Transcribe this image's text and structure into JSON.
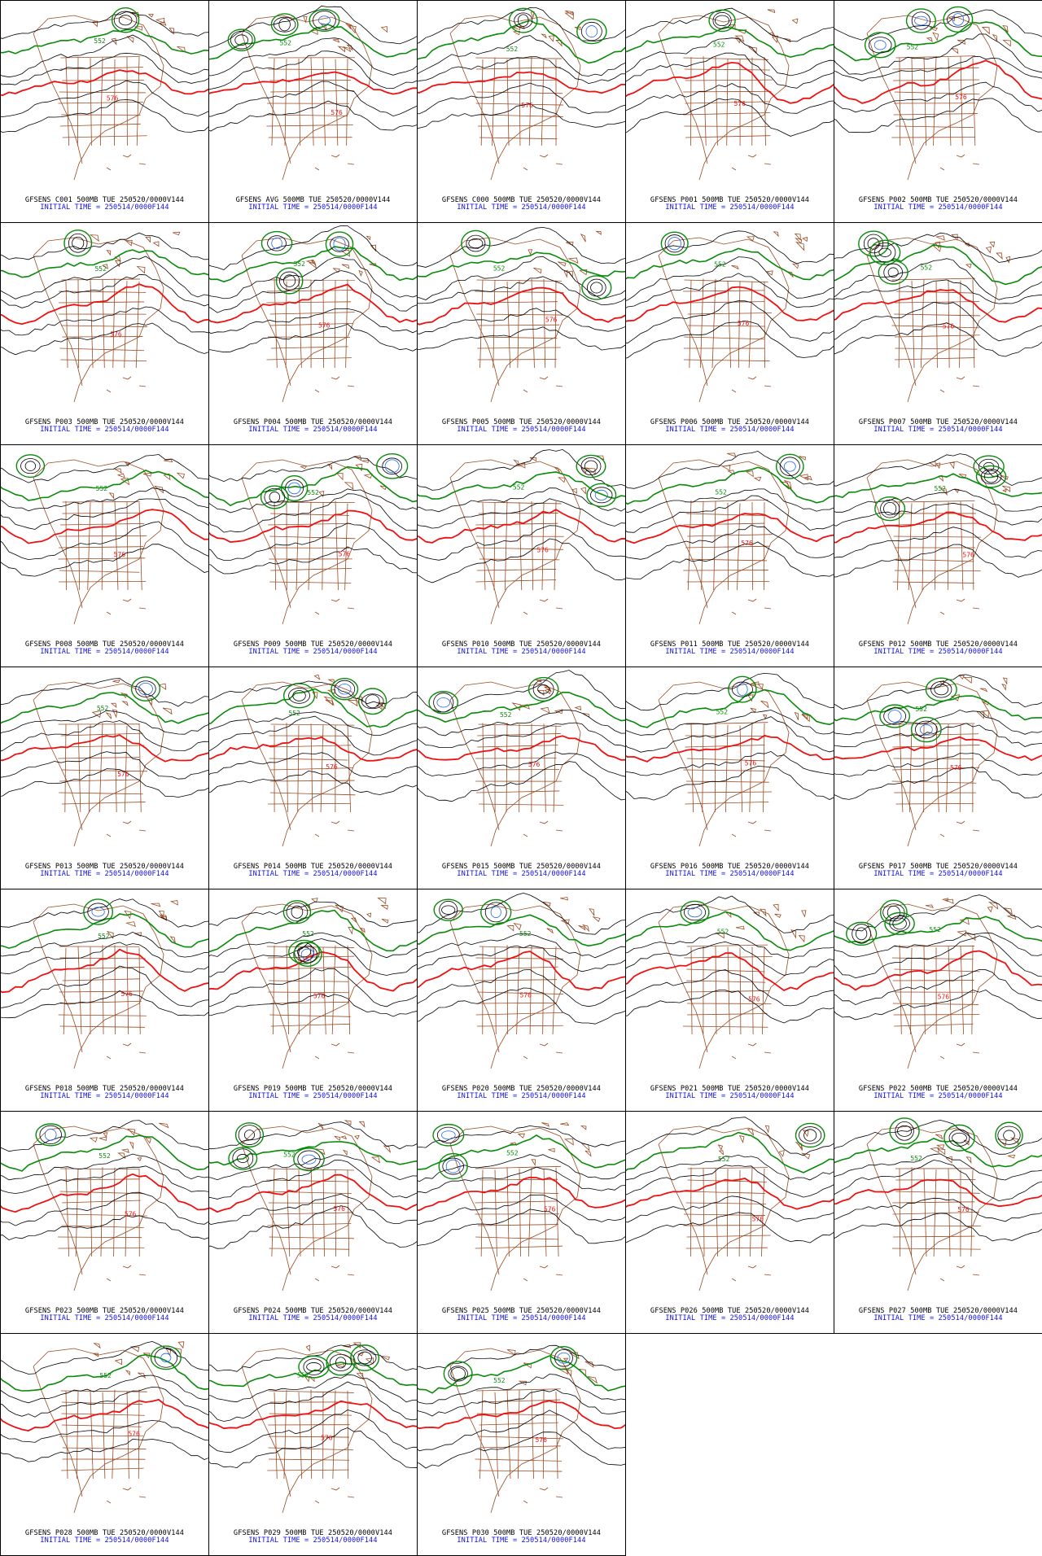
{
  "caption_line2": "INITIAL TIME = 250514/0000F144",
  "caption_suffix": "500MB TUE 250520/0000V144",
  "contour_labels": {
    "green": "552",
    "red": "576"
  },
  "colors": {
    "map_lines": "#9a4a22",
    "contour": "#000000",
    "contour_552": "#0a8a0a",
    "contour_576": "#ee1111",
    "contour_low": "#2266ee",
    "caption_line2": "#1010ee"
  },
  "panels": [
    {
      "member": "GFSENS C001"
    },
    {
      "member": "GFSENS AVG"
    },
    {
      "member": "GFSENS C000"
    },
    {
      "member": "GFSENS P001"
    },
    {
      "member": "GFSENS P002"
    },
    {
      "member": "GFSENS P003"
    },
    {
      "member": "GFSENS P004"
    },
    {
      "member": "GFSENS P005"
    },
    {
      "member": "GFSENS P006"
    },
    {
      "member": "GFSENS P007"
    },
    {
      "member": "GFSENS P008"
    },
    {
      "member": "GFSENS P009"
    },
    {
      "member": "GFSENS P010"
    },
    {
      "member": "GFSENS P011"
    },
    {
      "member": "GFSENS P012"
    },
    {
      "member": "GFSENS P013"
    },
    {
      "member": "GFSENS P014"
    },
    {
      "member": "GFSENS P015"
    },
    {
      "member": "GFSENS P016"
    },
    {
      "member": "GFSENS P017"
    },
    {
      "member": "GFSENS P018"
    },
    {
      "member": "GFSENS P019"
    },
    {
      "member": "GFSENS P020"
    },
    {
      "member": "GFSENS P021"
    },
    {
      "member": "GFSENS P022"
    },
    {
      "member": "GFSENS P023"
    },
    {
      "member": "GFSENS P024"
    },
    {
      "member": "GFSENS P025"
    },
    {
      "member": "GFSENS P026"
    },
    {
      "member": "GFSENS P027"
    },
    {
      "member": "GFSENS P028"
    },
    {
      "member": "GFSENS P029"
    },
    {
      "member": "GFSENS P030"
    }
  ]
}
